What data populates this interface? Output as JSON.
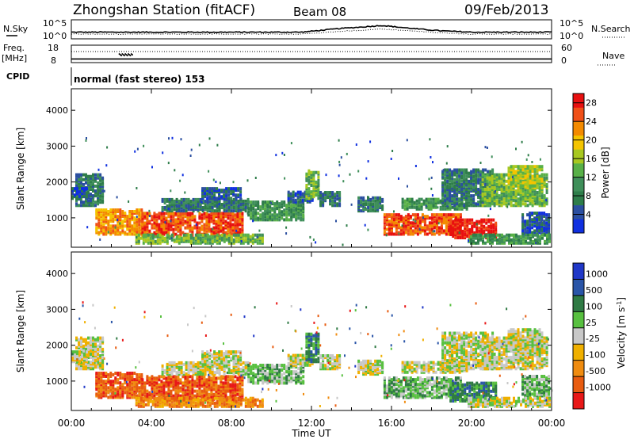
{
  "header": {
    "station": "Zhongshan Station (fitACF)",
    "beam": "Beam 08",
    "date": "09/Feb/2013"
  },
  "panel_labels": {
    "nsky": "N.Sky",
    "nsearch": "N.Search",
    "freq": "Freq.",
    "freq_unit": "[MHz]",
    "nave": "Nave",
    "cpid": "CPID",
    "cpid_text": "normal (fast stereo) 153"
  },
  "colors": {
    "power": [
      "#1030e0",
      "#2b4fa0",
      "#2e7d4a",
      "#3f8f5a",
      "#58b048",
      "#a8c820",
      "#f4c400",
      "#f38a00",
      "#f05018",
      "#e81010"
    ],
    "velocity": [
      "#2038c8",
      "#2a55a8",
      "#2f7a44",
      "#58c040",
      "#c8c8c8",
      "#f0b000",
      "#f08c10",
      "#e85c10",
      "#e81818"
    ]
  },
  "chart_data": [
    {
      "type": "line",
      "name": "noise-panel",
      "series": [
        {
          "name": "N.Sky"
        },
        {
          "name": "N.Search"
        }
      ],
      "y_left_ticks": [
        "10^5",
        "10^0"
      ],
      "y_right_ticks": [
        "10^5",
        "10^0"
      ],
      "x_hours": [
        0,
        2,
        4,
        6,
        8,
        10,
        11.5,
        12.5,
        13.5,
        14.5,
        15.5,
        16.5,
        17.5,
        18.5,
        20,
        22,
        24
      ],
      "nsky_level": [
        0.35,
        0.35,
        0.35,
        0.35,
        0.35,
        0.35,
        0.35,
        0.45,
        0.55,
        0.62,
        0.7,
        0.6,
        0.5,
        0.42,
        0.35,
        0.35,
        0.35
      ],
      "nsearch_level": [
        0.25,
        0.25,
        0.25,
        0.25,
        0.25,
        0.25,
        0.25,
        0.32,
        0.4,
        0.45,
        0.52,
        0.45,
        0.38,
        0.32,
        0.25,
        0.25,
        0.25
      ]
    },
    {
      "type": "line",
      "name": "frequency-panel",
      "series": [
        {
          "name": "Freq."
        },
        {
          "name": "Nave"
        }
      ],
      "y_left_ticks": [
        8,
        18
      ],
      "y_left_range": [
        7,
        19
      ],
      "y_right_ticks": [
        0,
        60
      ],
      "y_right_range": [
        0,
        60
      ],
      "freq_mhz": 9.5,
      "nave": 38
    },
    {
      "type": "heatmap",
      "name": "power-panel",
      "ylabel": "Slant Range [km]",
      "ylim": [
        180,
        4600
      ],
      "yticks": [
        1000,
        2000,
        3000,
        4000
      ],
      "xlim": [
        0,
        24
      ],
      "xticks": [
        "00:00",
        "04:00",
        "08:00",
        "12:00",
        "16:00",
        "20:00",
        "00:00"
      ],
      "colorbar_label": "Power [dB]",
      "colorbar_ticks": [
        "4",
        "8",
        "12",
        "16",
        "20",
        "24",
        "28"
      ],
      "colorbar_range": [
        0,
        30
      ]
    },
    {
      "type": "heatmap",
      "name": "velocity-panel",
      "ylabel": "Slant Range [km]",
      "ylim": [
        180,
        4600
      ],
      "yticks": [
        1000,
        2000,
        3000,
        4000
      ],
      "xlim": [
        0,
        24
      ],
      "xlabel": "Time UT",
      "xticks": [
        "00:00",
        "04:00",
        "08:00",
        "12:00",
        "16:00",
        "20:00",
        "00:00"
      ],
      "colorbar_label": "Velocity [m s",
      "colorbar_label_sup": "-1",
      "colorbar_label_end": "]",
      "colorbar_ticks": [
        "1000",
        "500",
        "100",
        "25",
        "-25",
        "-100",
        "-500",
        "-1000"
      ]
    }
  ]
}
